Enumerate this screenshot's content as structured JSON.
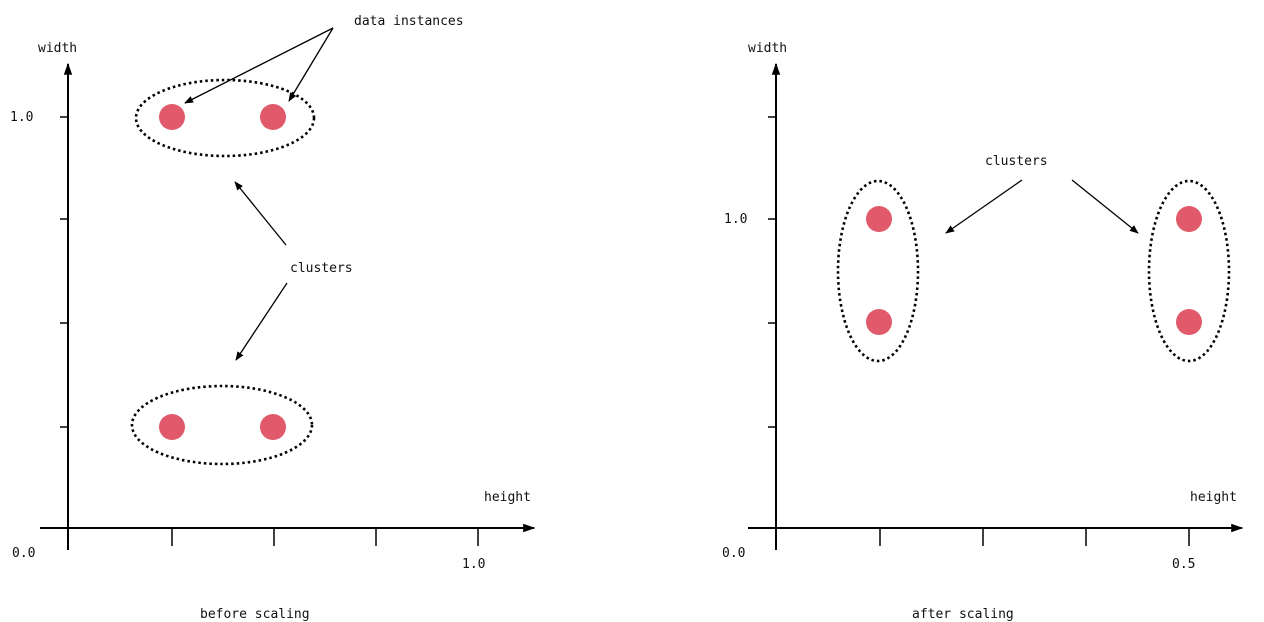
{
  "colors": {
    "dot": "#e05a6c",
    "ink": "#000000"
  },
  "left": {
    "y_axis_label": "width",
    "x_axis_label": "height",
    "origin_label": "0.0",
    "y_tick_label": "1.0",
    "x_tick_label": "1.0",
    "caption": "before scaling",
    "annotation_instances": "data instances",
    "annotation_clusters": "clusters"
  },
  "right": {
    "y_axis_label": "width",
    "x_axis_label": "height",
    "origin_label": "0.0",
    "y_tick_label": "1.0",
    "x_tick_label": "0.5",
    "caption": "after scaling",
    "annotation_clusters": "clusters"
  }
}
